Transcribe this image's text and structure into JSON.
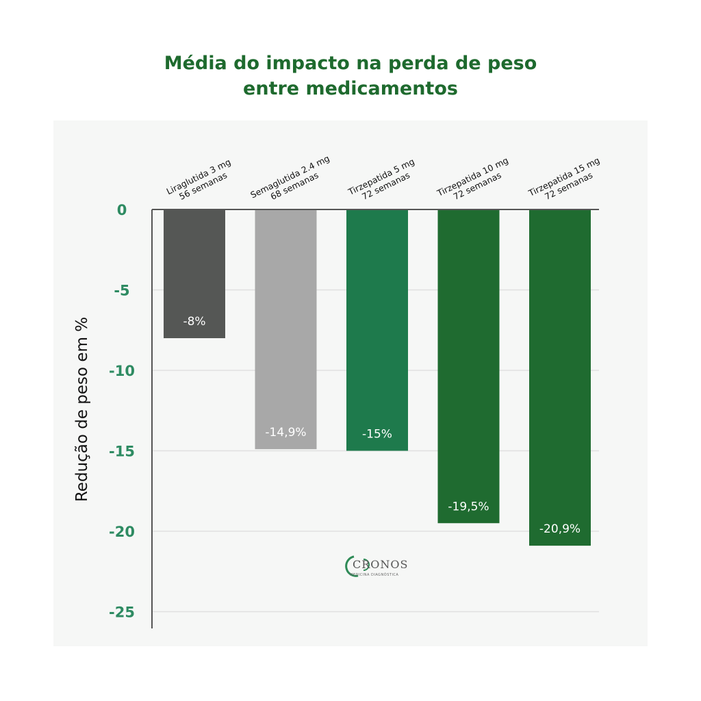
{
  "title_lines": [
    "Média do impacto na perda de peso",
    "entre medicamentos"
  ],
  "logo": {
    "word": "CRONOS",
    "subtitle": "MEDICINA DIAGNÓSTICA"
  },
  "chart_data": {
    "type": "bar",
    "ylabel": "Redução de peso em %",
    "ylim": [
      -26.5,
      0
    ],
    "yticks": [
      0,
      -5,
      -10,
      -15,
      -20,
      -25
    ],
    "ytick_labels": [
      "0",
      "-5",
      "-10",
      "-15",
      "-20",
      "-25"
    ],
    "grid": true,
    "categories": [
      [
        "Liraglutida 3 mg",
        "56 semanas"
      ],
      [
        "Semaglutida 2.4 mg",
        "68 semanas"
      ],
      [
        "Tirzepatida 5 mg",
        "72 semanas"
      ],
      [
        "Tirzepatida 10 mg",
        "72 semanas"
      ],
      [
        "Tirzepatida 15 mg",
        "72 semanas"
      ]
    ],
    "values": [
      -8,
      -14.9,
      -15,
      -19.5,
      -20.9
    ],
    "value_labels": [
      "-8%",
      "-14,9%",
      "-15%",
      "-19,5%",
      "-20,9%"
    ],
    "bar_colors": [
      "#555755",
      "#a8a8a8",
      "#1e7a4c",
      "#1f6b30",
      "#1f6b30"
    ],
    "tick_color": "#2e8b62",
    "title_color": "#1e6a2e"
  }
}
